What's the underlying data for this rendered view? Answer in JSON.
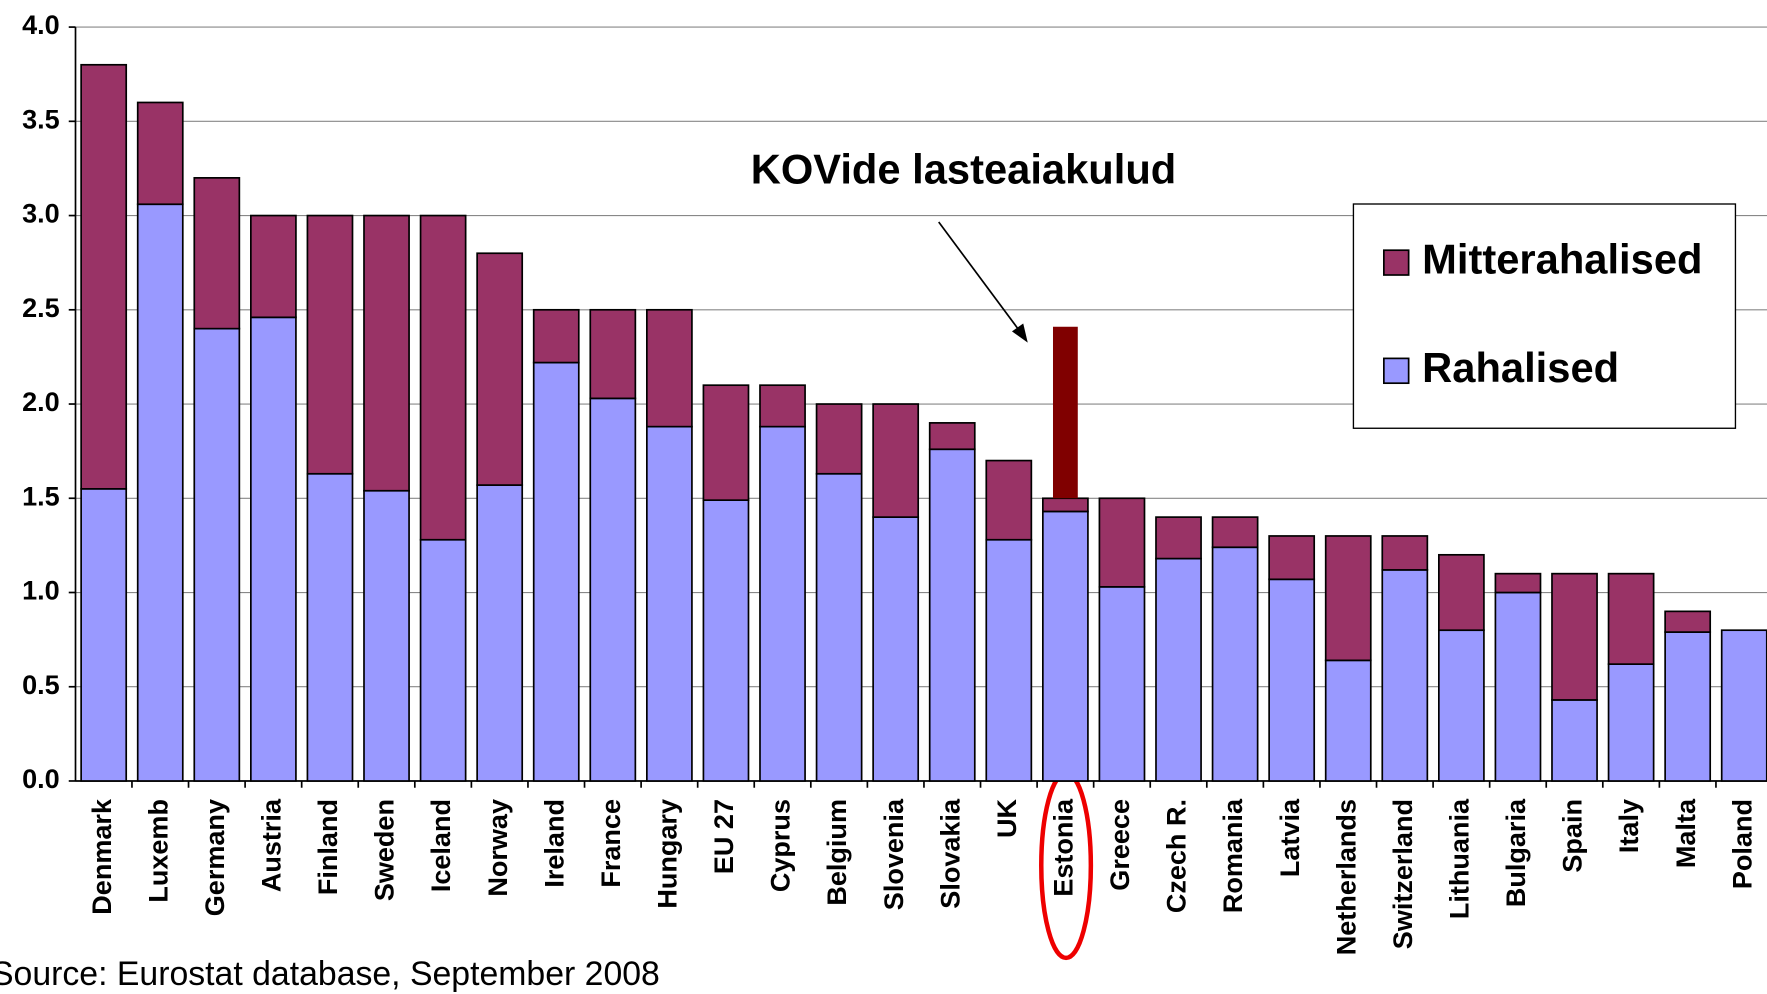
{
  "chart_data": {
    "type": "stacked_bar",
    "categories": [
      "Denmark",
      "Luxemb",
      "Germany",
      "Austria",
      "Finland",
      "Sweden",
      "Iceland",
      "Norway",
      "Ireland",
      "France",
      "Hungary",
      "EU 27",
      "Cyprus",
      "Belgium",
      "Slovenia",
      "Slovakia",
      "UK",
      "Estonia",
      "Greece",
      "Czech R.",
      "Romania",
      "Latvia",
      "Netherlands",
      "Switzerland",
      "Lithuania",
      "Bulgaria",
      "Spain",
      "Italy",
      "Malta",
      "Poland"
    ],
    "series": [
      {
        "name": "Rahalised",
        "color": "#9999ff",
        "values": [
          1.55,
          3.06,
          2.4,
          2.46,
          1.63,
          1.54,
          1.28,
          1.57,
          2.22,
          2.03,
          1.88,
          1.49,
          1.88,
          1.63,
          1.4,
          1.76,
          1.28,
          1.43,
          1.03,
          1.18,
          1.24,
          1.07,
          0.64,
          1.12,
          0.8,
          1.0,
          0.43,
          0.62,
          0.79,
          0.8
        ]
      },
      {
        "name": "Mitterahalised",
        "color": "#993366",
        "values": [
          2.25,
          0.54,
          0.8,
          0.54,
          1.37,
          1.46,
          1.72,
          1.23,
          0.28,
          0.47,
          0.62,
          0.61,
          0.22,
          0.37,
          0.6,
          0.14,
          0.42,
          0.07,
          0.47,
          0.22,
          0.16,
          0.23,
          0.66,
          0.18,
          0.4,
          0.1,
          0.67,
          0.48,
          0.11,
          0
        ]
      }
    ],
    "highlight": {
      "text": "KOVide lasteaiakulud",
      "category": "Estonia",
      "value": 0.91,
      "color": "#800000"
    },
    "ylim": [
      0,
      4
    ],
    "yticks": [
      {
        "value": 0,
        "label": "0.0"
      },
      {
        "value": 0.5,
        "label": "0.5"
      },
      {
        "value": 1,
        "label": "1.0"
      },
      {
        "value": 1.5,
        "label": "1.5"
      },
      {
        "value": 2,
        "label": "2.0"
      },
      {
        "value": 2.5,
        "label": "2.5"
      },
      {
        "value": 3,
        "label": "3.0"
      },
      {
        "value": 3.5,
        "label": "3.5"
      },
      {
        "value": 4,
        "label": "4.0"
      }
    ],
    "grid": true,
    "legend": "upper right",
    "source": "Source: Eurostat database, September 2008"
  }
}
